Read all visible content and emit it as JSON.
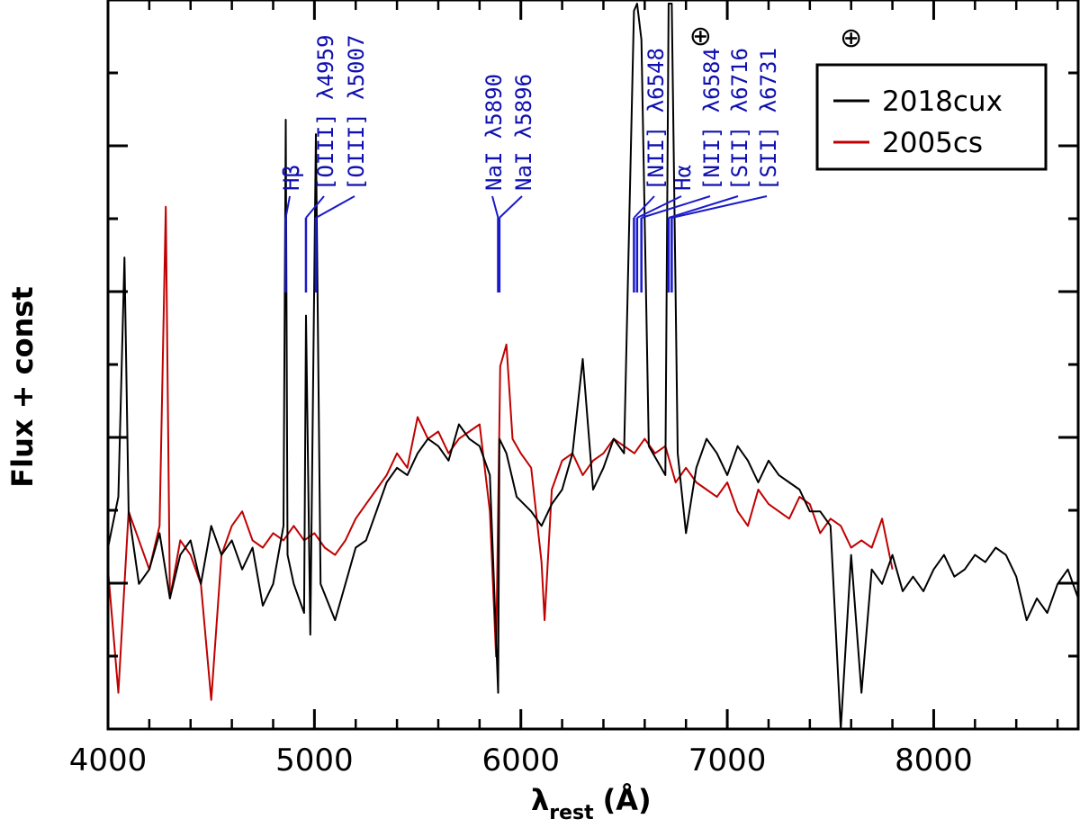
{
  "chart_data": {
    "type": "line",
    "title": "",
    "xlabel": "λ",
    "xlabel_sub": "rest",
    "xlabel_unit": "(Å)",
    "ylabel": "Flux + const",
    "xlim": [
      4000,
      8700
    ],
    "ylim": [
      0,
      1
    ],
    "x_ticks": [
      4000,
      5000,
      6000,
      7000,
      8000
    ],
    "x_tick_labels": [
      "4000",
      "5000",
      "6000",
      "7000",
      "8000"
    ],
    "grid": false,
    "legend_position": "top-right",
    "series": [
      {
        "name": "2018cux",
        "color": "#000000",
        "x": [
          4000,
          4050,
          4080,
          4100,
          4150,
          4200,
          4250,
          4300,
          4350,
          4400,
          4450,
          4500,
          4550,
          4600,
          4650,
          4700,
          4750,
          4800,
          4850,
          4861,
          4870,
          4900,
          4950,
          4959,
          4980,
          5007,
          5030,
          5100,
          5150,
          5200,
          5250,
          5300,
          5350,
          5400,
          5450,
          5500,
          5550,
          5600,
          5650,
          5700,
          5750,
          5800,
          5850,
          5890,
          5896,
          5930,
          5980,
          6050,
          6100,
          6150,
          6200,
          6250,
          6300,
          6350,
          6400,
          6450,
          6500,
          6548,
          6563,
          6584,
          6620,
          6660,
          6700,
          6716,
          6731,
          6760,
          6800,
          6850,
          6900,
          6950,
          7000,
          7050,
          7100,
          7150,
          7200,
          7250,
          7300,
          7350,
          7400,
          7450,
          7500,
          7550,
          7600,
          7650,
          7700,
          7750,
          7800,
          7850,
          7900,
          7950,
          8000,
          8050,
          8100,
          8150,
          8200,
          8250,
          8300,
          8350,
          8400,
          8450,
          8500,
          8550,
          8600,
          8650,
          8700
        ],
        "y": [
          0.25,
          0.32,
          0.65,
          0.3,
          0.2,
          0.22,
          0.27,
          0.18,
          0.24,
          0.26,
          0.2,
          0.28,
          0.24,
          0.26,
          0.22,
          0.25,
          0.17,
          0.2,
          0.28,
          0.84,
          0.24,
          0.2,
          0.16,
          0.57,
          0.13,
          0.82,
          0.2,
          0.15,
          0.2,
          0.25,
          0.26,
          0.3,
          0.34,
          0.36,
          0.35,
          0.38,
          0.4,
          0.39,
          0.37,
          0.42,
          0.4,
          0.39,
          0.35,
          0.05,
          0.4,
          0.38,
          0.32,
          0.3,
          0.28,
          0.31,
          0.33,
          0.38,
          0.51,
          0.33,
          0.36,
          0.4,
          0.38,
          0.99,
          1.0,
          0.95,
          0.39,
          0.37,
          0.35,
          1.0,
          1.0,
          0.38,
          0.27,
          0.36,
          0.4,
          0.38,
          0.35,
          0.39,
          0.37,
          0.34,
          0.37,
          0.35,
          0.34,
          0.33,
          0.3,
          0.3,
          0.28,
          0.0,
          0.24,
          0.05,
          0.22,
          0.2,
          0.24,
          0.19,
          0.21,
          0.19,
          0.22,
          0.24,
          0.21,
          0.22,
          0.24,
          0.23,
          0.25,
          0.24,
          0.21,
          0.15,
          0.18,
          0.16,
          0.2,
          0.22,
          0.18
        ]
      },
      {
        "name": "2005cs",
        "color": "#c00000",
        "x": [
          4000,
          4050,
          4100,
          4150,
          4200,
          4250,
          4280,
          4300,
          4350,
          4400,
          4450,
          4500,
          4550,
          4600,
          4650,
          4700,
          4750,
          4800,
          4850,
          4900,
          4950,
          5000,
          5050,
          5100,
          5150,
          5200,
          5250,
          5300,
          5350,
          5400,
          5450,
          5500,
          5550,
          5600,
          5650,
          5700,
          5750,
          5800,
          5850,
          5880,
          5900,
          5930,
          5960,
          6000,
          6050,
          6100,
          6115,
          6150,
          6200,
          6250,
          6300,
          6350,
          6400,
          6450,
          6500,
          6550,
          6600,
          6650,
          6700,
          6750,
          6800,
          6850,
          6900,
          6950,
          7000,
          7050,
          7100,
          7150,
          7200,
          7250,
          7300,
          7350,
          7400,
          7450,
          7500,
          7550,
          7600,
          7650,
          7700,
          7750,
          7800
        ],
        "y": [
          0.22,
          0.05,
          0.3,
          0.26,
          0.22,
          0.28,
          0.72,
          0.18,
          0.26,
          0.24,
          0.2,
          0.04,
          0.24,
          0.28,
          0.3,
          0.26,
          0.25,
          0.27,
          0.26,
          0.28,
          0.26,
          0.27,
          0.25,
          0.24,
          0.26,
          0.29,
          0.31,
          0.33,
          0.35,
          0.38,
          0.36,
          0.43,
          0.4,
          0.41,
          0.38,
          0.4,
          0.41,
          0.42,
          0.3,
          0.1,
          0.5,
          0.53,
          0.4,
          0.38,
          0.36,
          0.23,
          0.15,
          0.33,
          0.37,
          0.38,
          0.35,
          0.37,
          0.38,
          0.4,
          0.39,
          0.38,
          0.4,
          0.38,
          0.39,
          0.34,
          0.36,
          0.34,
          0.33,
          0.32,
          0.34,
          0.3,
          0.28,
          0.33,
          0.31,
          0.3,
          0.29,
          0.32,
          0.31,
          0.27,
          0.29,
          0.28,
          0.25,
          0.26,
          0.25,
          0.29,
          0.22
        ]
      }
    ],
    "line_ids": [
      {
        "id": "hb",
        "x": 4861,
        "text": "Hβ"
      },
      {
        "id": "oiii4959",
        "x": 4959,
        "text": "[OIII] λ4959"
      },
      {
        "id": "oiii5007",
        "x": 5007,
        "text": "[OIII] λ5007"
      },
      {
        "id": "nai5890",
        "x": 5890,
        "text": "NaI λ5890"
      },
      {
        "id": "nai5896",
        "x": 5896,
        "text": "NaI λ5896"
      },
      {
        "id": "nii6548",
        "x": 6548,
        "text": "[NII] λ6548"
      },
      {
        "id": "ha",
        "x": 6563,
        "text": "Hα"
      },
      {
        "id": "nii6584",
        "x": 6584,
        "text": "[NII] λ6584"
      },
      {
        "id": "sii6716",
        "x": 6716,
        "text": "[SII] λ6716"
      },
      {
        "id": "sii6731",
        "x": 6731,
        "text": "[SII] λ6731"
      }
    ],
    "telluric_markers": [
      {
        "x": 6870,
        "symbol": "⊕"
      },
      {
        "x": 7600,
        "symbol": "⊕"
      }
    ]
  }
}
